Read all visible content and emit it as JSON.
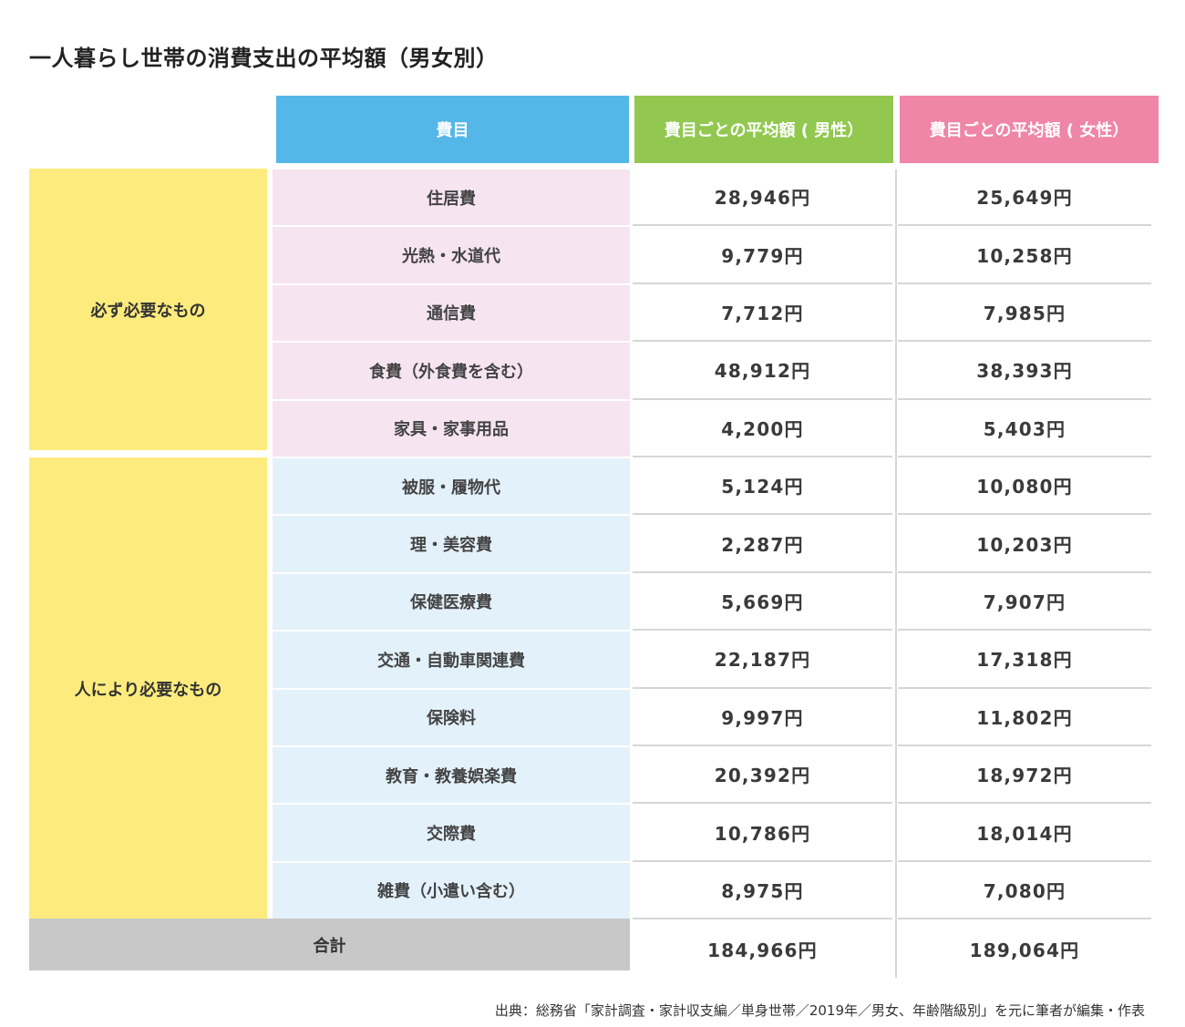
{
  "title": "一人暮らし世帯の消費支出の平均額（男女別）",
  "chart_data": {
    "type": "table",
    "columns": [
      "費目",
      "費目ごとの平均額 ( 男性）",
      "費目ごとの平均額 ( 女性）"
    ],
    "groups": [
      {
        "label": "必ず必要なもの",
        "color": "#fdec7d",
        "row_color": "#f6e4f0",
        "rows": [
          {
            "item": "住居費",
            "male": "28,946円",
            "female": "25,649円"
          },
          {
            "item": "光熱・水道代",
            "male": "9,779円",
            "female": "10,258円"
          },
          {
            "item": "通信費",
            "male": "7,712円",
            "female": "7,985円"
          },
          {
            "item": "食費（外食費を含む）",
            "male": "48,912円",
            "female": "38,393円"
          },
          {
            "item": "家具・家事用品",
            "male": "4,200円",
            "female": "5,403円"
          }
        ]
      },
      {
        "label": "人により必要なもの",
        "color": "#fdec7d",
        "row_color": "#e3f1fb",
        "rows": [
          {
            "item": "被服・履物代",
            "male": "5,124円",
            "female": "10,080円"
          },
          {
            "item": "理・美容費",
            "male": "2,287円",
            "female": "10,203円"
          },
          {
            "item": "保健医療費",
            "male": "5,669円",
            "female": "7,907円"
          },
          {
            "item": "交通・自動車関連費",
            "male": "22,187円",
            "female": "17,318円"
          },
          {
            "item": "保険料",
            "male": "9,997円",
            "female": "11,802円"
          },
          {
            "item": "教育・教養娯楽費",
            "male": "20,392円",
            "female": "18,972円"
          },
          {
            "item": "交際費",
            "male": "10,786円",
            "female": "18,014円"
          },
          {
            "item": "雑費（小遣い含む）",
            "male": "8,975円",
            "female": "7,080円"
          }
        ]
      }
    ],
    "total": {
      "label": "合計",
      "male": "184,966円",
      "female": "189,064円"
    }
  },
  "colors": {
    "header_category": "#55b7e8",
    "header_male": "#92c850",
    "header_female": "#ef85a7",
    "total_bg": "#c8c8c8"
  },
  "source": "出典：総務省「家計調査・家計収支編／単身世帯／2019年／男女、年齢階級別」を元に筆者が編集・作表"
}
